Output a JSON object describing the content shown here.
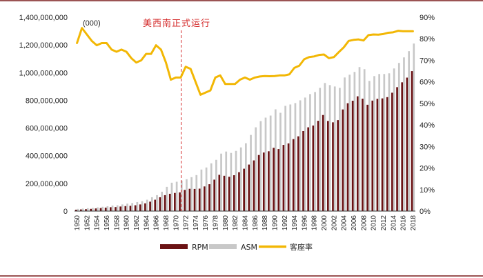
{
  "chart_data": {
    "type": "bar+line",
    "unit_note": "(000)",
    "annotation": "美西南正式运行",
    "annotation_year": 1971,
    "colors": {
      "rpm": "#6b1214",
      "asm": "#c8c8c8",
      "load_factor": "#f2b705",
      "annotation": "#d42a2a",
      "frame": "#7a1a1a"
    },
    "years": [
      1950,
      1951,
      1952,
      1953,
      1954,
      1955,
      1956,
      1957,
      1958,
      1959,
      1960,
      1961,
      1962,
      1963,
      1964,
      1965,
      1966,
      1967,
      1968,
      1969,
      1970,
      1971,
      1972,
      1973,
      1974,
      1975,
      1976,
      1977,
      1978,
      1979,
      1980,
      1981,
      1982,
      1983,
      1984,
      1985,
      1986,
      1987,
      1988,
      1989,
      1990,
      1991,
      1992,
      1993,
      1994,
      1995,
      1996,
      1997,
      1998,
      1999,
      2000,
      2001,
      2002,
      2003,
      2004,
      2005,
      2006,
      2007,
      2008,
      2009,
      2010,
      2011,
      2012,
      2013,
      2014,
      2015,
      2016,
      2017,
      2018
    ],
    "x_tick_labels": [
      "1950",
      "1952",
      "1954",
      "1956",
      "1958",
      "1960",
      "1962",
      "1964",
      "1966",
      "1968",
      "1970",
      "1972",
      "1974",
      "1976",
      "1978",
      "1980",
      "1982",
      "1984",
      "1986",
      "1988",
      "1990",
      "1992",
      "1994",
      "1996",
      "1998",
      "2000",
      "2002",
      "2004",
      "2006",
      "2008",
      "2010",
      "2012",
      "2014",
      "2016",
      "2018"
    ],
    "series": [
      {
        "name": "RPM",
        "type": "bar",
        "axis": "left",
        "values": [
          10000000,
          12000000,
          14000000,
          16000000,
          19000000,
          22000000,
          25000000,
          28000000,
          29000000,
          33000000,
          36000000,
          38000000,
          42000000,
          48000000,
          56000000,
          68000000,
          82000000,
          100000000,
          115000000,
          125000000,
          131000000,
          135000000,
          153000000,
          161000000,
          160000000,
          162000000,
          178000000,
          194000000,
          227000000,
          262000000,
          255000000,
          248000000,
          259000000,
          281000000,
          306000000,
          336000000,
          366000000,
          405000000,
          423000000,
          432000000,
          457000000,
          448000000,
          478000000,
          489000000,
          520000000,
          540000000,
          578000000,
          605000000,
          618000000,
          652000000,
          694000000,
          651000000,
          641000000,
          657000000,
          734000000,
          779000000,
          797000000,
          829000000,
          812000000,
          768000000,
          798000000,
          811000000,
          814000000,
          823000000,
          855000000,
          895000000,
          930000000,
          964000000,
          1011000000
        ]
      },
      {
        "name": "ASM",
        "type": "bar",
        "axis": "left",
        "values": [
          16000000,
          18000000,
          21000000,
          23000000,
          27000000,
          31000000,
          35000000,
          40000000,
          42000000,
          48000000,
          54000000,
          58000000,
          65000000,
          72000000,
          82000000,
          100000000,
          115000000,
          140000000,
          175000000,
          205000000,
          212000000,
          220000000,
          230000000,
          245000000,
          260000000,
          300000000,
          315000000,
          345000000,
          370000000,
          415000000,
          430000000,
          420000000,
          435000000,
          460000000,
          490000000,
          550000000,
          605000000,
          650000000,
          675000000,
          690000000,
          735000000,
          710000000,
          760000000,
          770000000,
          780000000,
          800000000,
          820000000,
          845000000,
          860000000,
          890000000,
          925000000,
          910000000,
          900000000,
          890000000,
          965000000,
          985000000,
          1005000000,
          1040000000,
          1025000000,
          940000000,
          975000000,
          990000000,
          990000000,
          995000000,
          1030000000,
          1070000000,
          1110000000,
          1155000000,
          1210000000
        ]
      },
      {
        "name": "客座率",
        "type": "line",
        "axis": "right",
        "values": [
          0.78,
          0.85,
          0.82,
          0.79,
          0.77,
          0.78,
          0.78,
          0.75,
          0.74,
          0.75,
          0.74,
          0.71,
          0.69,
          0.7,
          0.73,
          0.73,
          0.77,
          0.75,
          0.69,
          0.61,
          0.62,
          0.62,
          0.67,
          0.66,
          0.6,
          0.54,
          0.55,
          0.56,
          0.62,
          0.63,
          0.59,
          0.59,
          0.59,
          0.61,
          0.62,
          0.61,
          0.62,
          0.625,
          0.627,
          0.626,
          0.627,
          0.63,
          0.63,
          0.635,
          0.665,
          0.675,
          0.705,
          0.715,
          0.718,
          0.725,
          0.727,
          0.71,
          0.715,
          0.738,
          0.76,
          0.79,
          0.795,
          0.797,
          0.792,
          0.817,
          0.82,
          0.819,
          0.822,
          0.828,
          0.83,
          0.837,
          0.835,
          0.835,
          0.835
        ]
      }
    ],
    "left_axis": {
      "min": 0,
      "max": 1400000000,
      "step": 200000000,
      "tick_labels": [
        "0",
        "200,000,000",
        "400,000,000",
        "600,000,000",
        "800,000,000",
        "1,000,000,000",
        "1,200,000,000",
        "1,400,000,000"
      ]
    },
    "right_axis": {
      "min": 0,
      "max": 0.9,
      "step": 0.1,
      "tick_labels": [
        "0%",
        "10%",
        "20%",
        "30%",
        "40%",
        "50%",
        "60%",
        "70%",
        "80%",
        "90%"
      ]
    },
    "legend": [
      {
        "label": "RPM",
        "kind": "bar-rpm"
      },
      {
        "label": "ASM",
        "kind": "bar-asm"
      },
      {
        "label": "客座率",
        "kind": "line"
      }
    ]
  }
}
